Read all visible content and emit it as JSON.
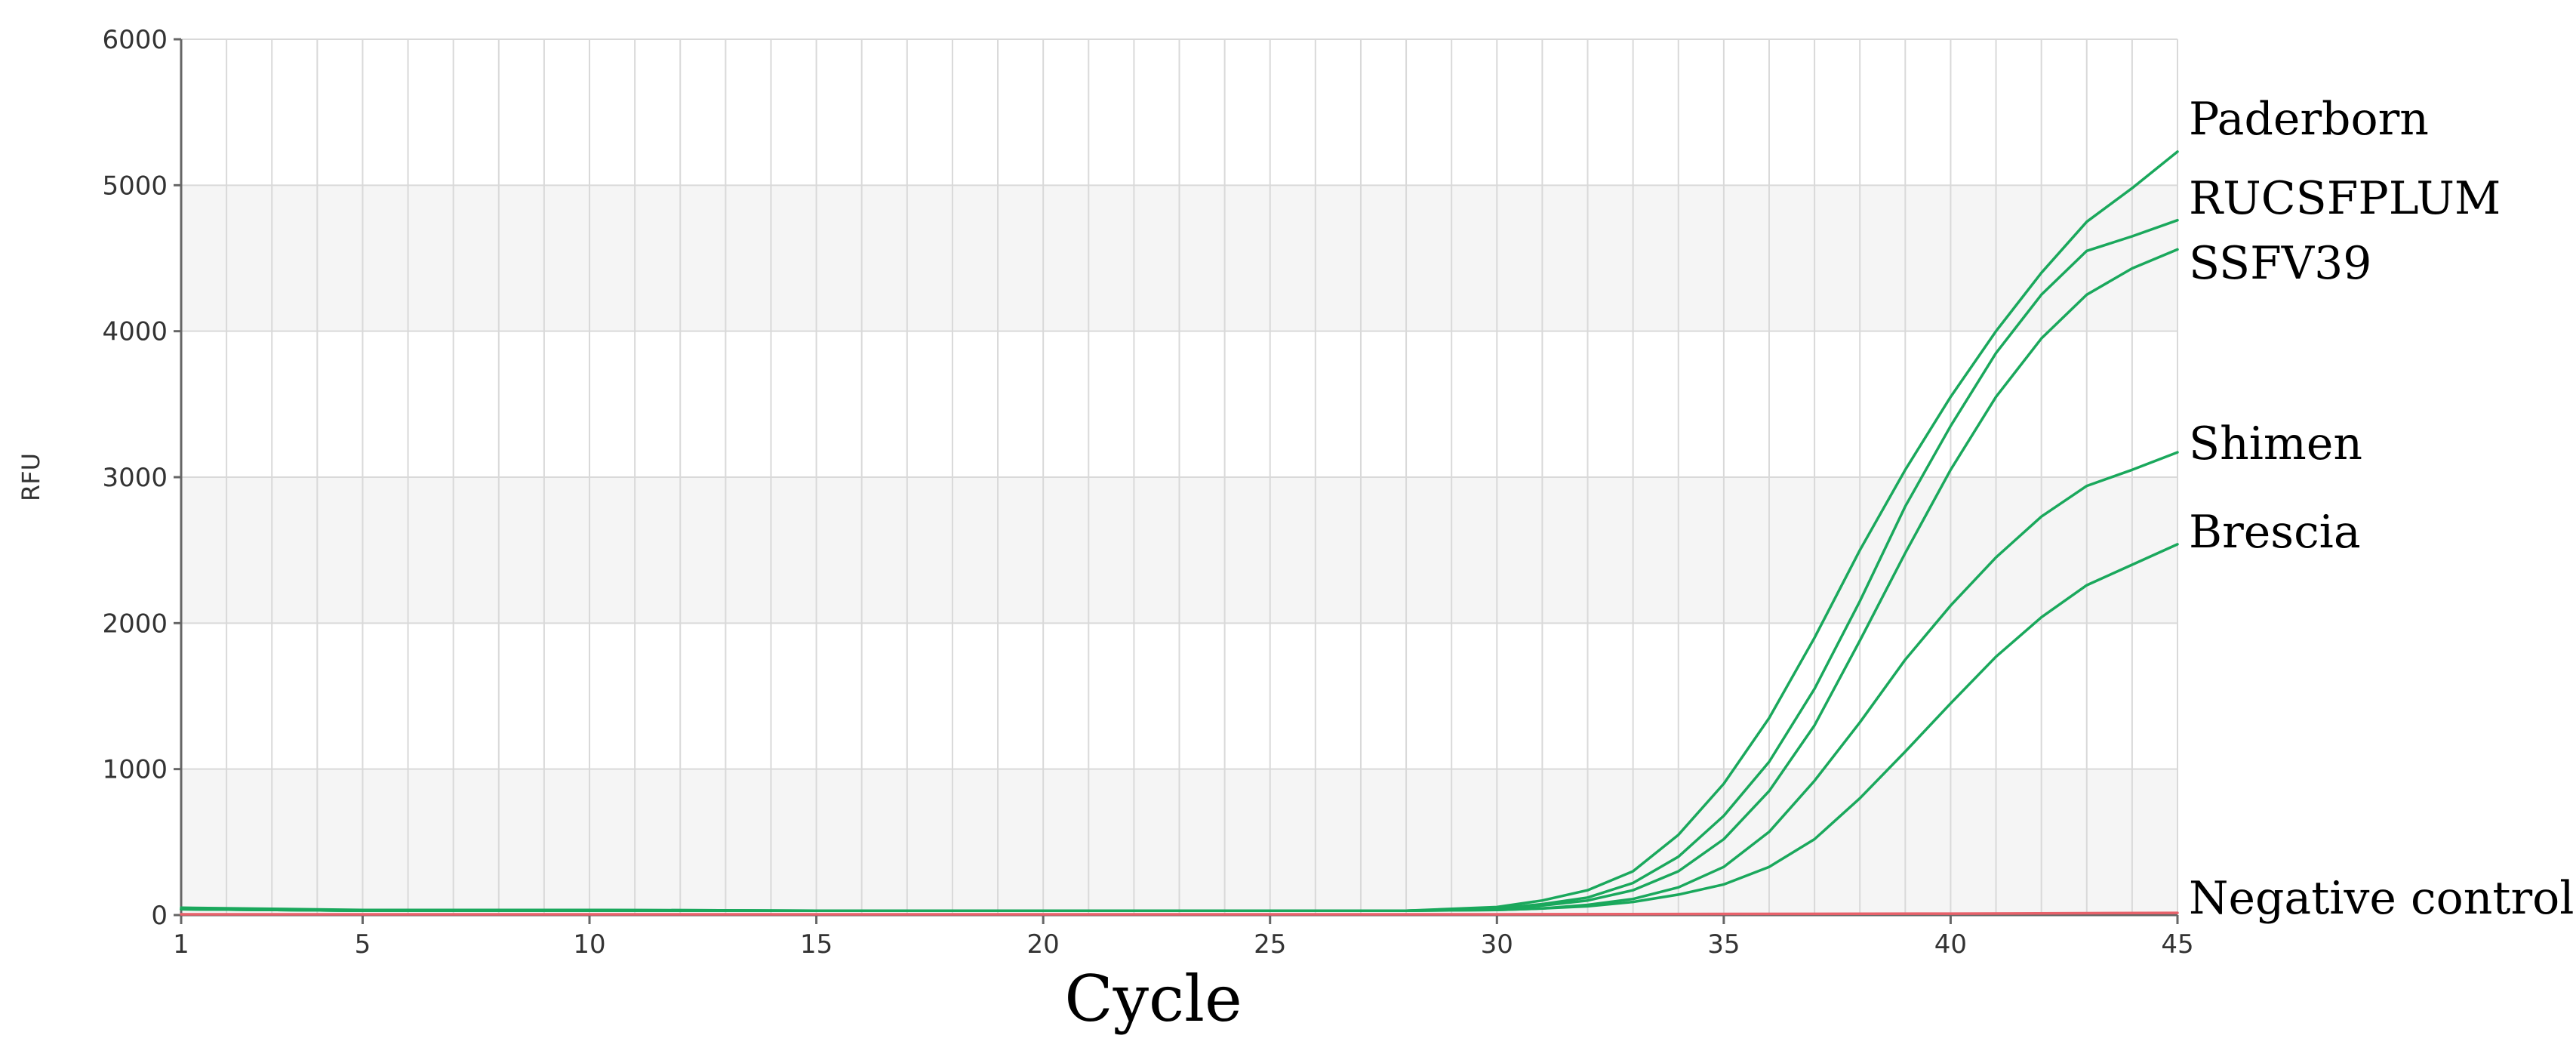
{
  "chart_data": {
    "type": "line",
    "xlabel": "Cycle",
    "ylabel": "RFU",
    "xlim": [
      1,
      45
    ],
    "ylim": [
      0,
      6000
    ],
    "x_ticks": [
      1,
      5,
      10,
      15,
      20,
      25,
      30,
      35,
      40,
      45
    ],
    "y_ticks": [
      0,
      1000,
      2000,
      3000,
      4000,
      5000,
      6000
    ],
    "grid": true,
    "series": [
      {
        "name": "Paderborn",
        "color": "#1aa85c",
        "points": [
          [
            1,
            50
          ],
          [
            5,
            35
          ],
          [
            10,
            35
          ],
          [
            15,
            30
          ],
          [
            20,
            30
          ],
          [
            25,
            30
          ],
          [
            28,
            30
          ],
          [
            30,
            55
          ],
          [
            31,
            100
          ],
          [
            32,
            170
          ],
          [
            33,
            300
          ],
          [
            34,
            550
          ],
          [
            35,
            900
          ],
          [
            36,
            1350
          ],
          [
            37,
            1900
          ],
          [
            38,
            2500
          ],
          [
            39,
            3050
          ],
          [
            40,
            3550
          ],
          [
            41,
            4000
          ],
          [
            42,
            4400
          ],
          [
            43,
            4750
          ],
          [
            44,
            4980
          ],
          [
            45,
            5230
          ]
        ]
      },
      {
        "name": "RUCSFPLUM",
        "color": "#1aa85c",
        "points": [
          [
            1,
            40
          ],
          [
            5,
            30
          ],
          [
            10,
            35
          ],
          [
            15,
            30
          ],
          [
            20,
            30
          ],
          [
            25,
            30
          ],
          [
            28,
            30
          ],
          [
            30,
            45
          ],
          [
            31,
            75
          ],
          [
            32,
            120
          ],
          [
            33,
            220
          ],
          [
            34,
            400
          ],
          [
            35,
            680
          ],
          [
            36,
            1050
          ],
          [
            37,
            1550
          ],
          [
            38,
            2150
          ],
          [
            39,
            2800
          ],
          [
            40,
            3350
          ],
          [
            41,
            3850
          ],
          [
            42,
            4250
          ],
          [
            43,
            4550
          ],
          [
            44,
            4650
          ],
          [
            45,
            4760
          ]
        ]
      },
      {
        "name": "SSFV39",
        "color": "#1aa85c",
        "points": [
          [
            1,
            40
          ],
          [
            5,
            30
          ],
          [
            10,
            30
          ],
          [
            15,
            30
          ],
          [
            20,
            30
          ],
          [
            25,
            30
          ],
          [
            28,
            30
          ],
          [
            30,
            40
          ],
          [
            31,
            65
          ],
          [
            32,
            100
          ],
          [
            33,
            170
          ],
          [
            34,
            300
          ],
          [
            35,
            520
          ],
          [
            36,
            850
          ],
          [
            37,
            1300
          ],
          [
            38,
            1880
          ],
          [
            39,
            2480
          ],
          [
            40,
            3050
          ],
          [
            41,
            3550
          ],
          [
            42,
            3950
          ],
          [
            43,
            4250
          ],
          [
            44,
            4430
          ],
          [
            45,
            4560
          ]
        ]
      },
      {
        "name": "Shimen",
        "color": "#1aa85c",
        "points": [
          [
            1,
            40
          ],
          [
            5,
            30
          ],
          [
            10,
            30
          ],
          [
            15,
            30
          ],
          [
            20,
            30
          ],
          [
            25,
            30
          ],
          [
            28,
            30
          ],
          [
            30,
            35
          ],
          [
            31,
            45
          ],
          [
            32,
            70
          ],
          [
            33,
            110
          ],
          [
            34,
            190
          ],
          [
            35,
            330
          ],
          [
            36,
            570
          ],
          [
            37,
            920
          ],
          [
            38,
            1320
          ],
          [
            39,
            1750
          ],
          [
            40,
            2120
          ],
          [
            41,
            2450
          ],
          [
            42,
            2730
          ],
          [
            43,
            2940
          ],
          [
            44,
            3050
          ],
          [
            45,
            3170
          ]
        ]
      },
      {
        "name": "Brescia",
        "color": "#1aa85c",
        "points": [
          [
            1,
            40
          ],
          [
            5,
            30
          ],
          [
            10,
            30
          ],
          [
            15,
            30
          ],
          [
            20,
            30
          ],
          [
            25,
            30
          ],
          [
            28,
            30
          ],
          [
            30,
            35
          ],
          [
            31,
            45
          ],
          [
            32,
            60
          ],
          [
            33,
            90
          ],
          [
            34,
            140
          ],
          [
            35,
            210
          ],
          [
            36,
            330
          ],
          [
            37,
            520
          ],
          [
            38,
            800
          ],
          [
            39,
            1120
          ],
          [
            40,
            1450
          ],
          [
            41,
            1770
          ],
          [
            42,
            2040
          ],
          [
            43,
            2260
          ],
          [
            44,
            2400
          ],
          [
            45,
            2540
          ]
        ]
      },
      {
        "name": "Negative control",
        "color": "#e8626b",
        "points": [
          [
            1,
            5
          ],
          [
            10,
            5
          ],
          [
            20,
            5
          ],
          [
            30,
            5
          ],
          [
            40,
            10
          ],
          [
            45,
            15
          ]
        ]
      }
    ]
  }
}
